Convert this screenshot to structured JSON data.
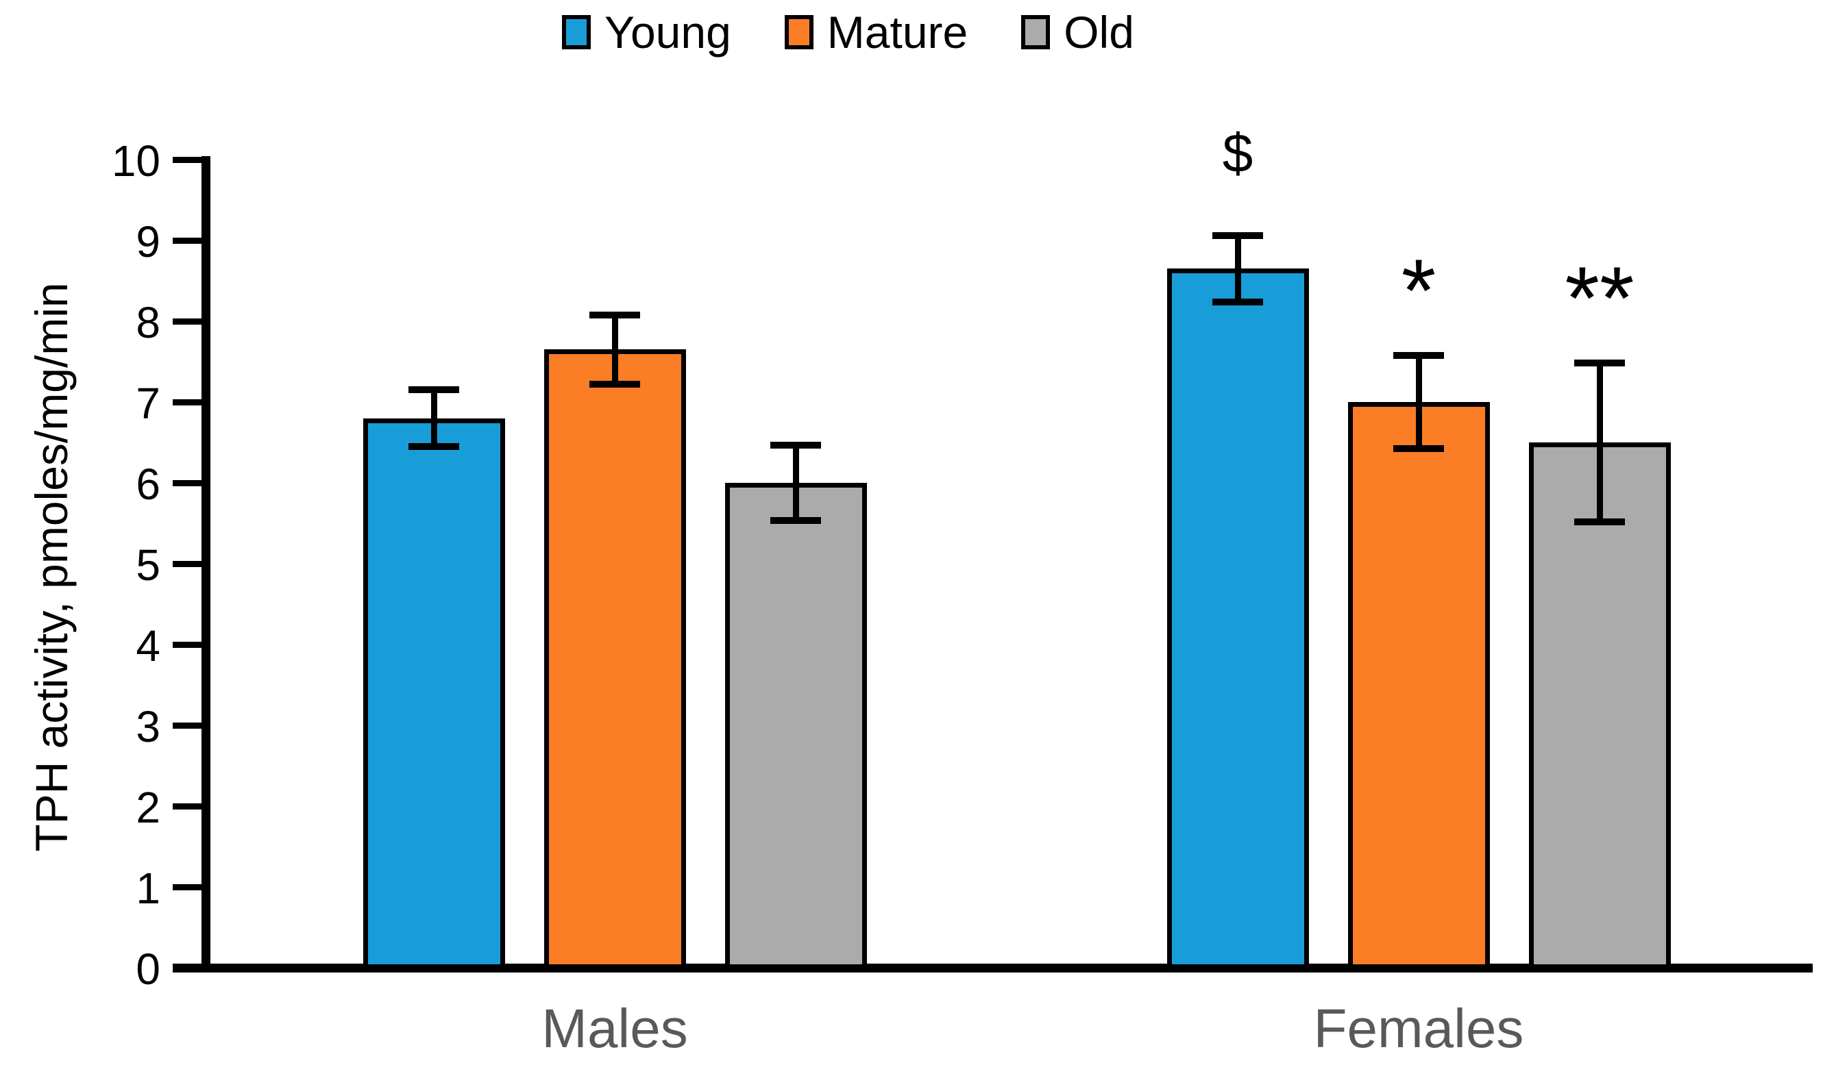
{
  "legend": {
    "position": "top-center",
    "items": [
      {
        "label": "Young",
        "color": "#199DD9"
      },
      {
        "label": "Mature",
        "color": "#FB7D26"
      },
      {
        "label": "Old",
        "color": "#ABABAB"
      }
    ]
  },
  "chart_data": {
    "type": "bar",
    "title": "",
    "xlabel": "",
    "ylabel": "TPH activity, pmoles/mg/min",
    "ylim": [
      0,
      10
    ],
    "yticks": [
      "0",
      "1",
      "2",
      "3",
      "4",
      "5",
      "6",
      "7",
      "8",
      "9",
      "10"
    ],
    "grid": false,
    "categories": [
      "Males",
      "Females"
    ],
    "series": [
      {
        "name": "Young",
        "color": "#199DD9",
        "values": [
          6.8,
          8.65
        ],
        "errors": [
          0.35,
          0.41
        ],
        "annotations": [
          "",
          "$"
        ]
      },
      {
        "name": "Mature",
        "color": "#FB7D26",
        "values": [
          7.65,
          7.0
        ],
        "errors": [
          0.43,
          0.58
        ],
        "annotations": [
          "",
          "*"
        ]
      },
      {
        "name": "Old",
        "color": "#ABABAB",
        "values": [
          6.0,
          6.5
        ],
        "errors": [
          0.47,
          0.98
        ],
        "annotations": [
          "",
          "**"
        ]
      }
    ],
    "error_bar_color": "#000000",
    "axis_color": "#000000",
    "category_label_color": "#595959"
  }
}
